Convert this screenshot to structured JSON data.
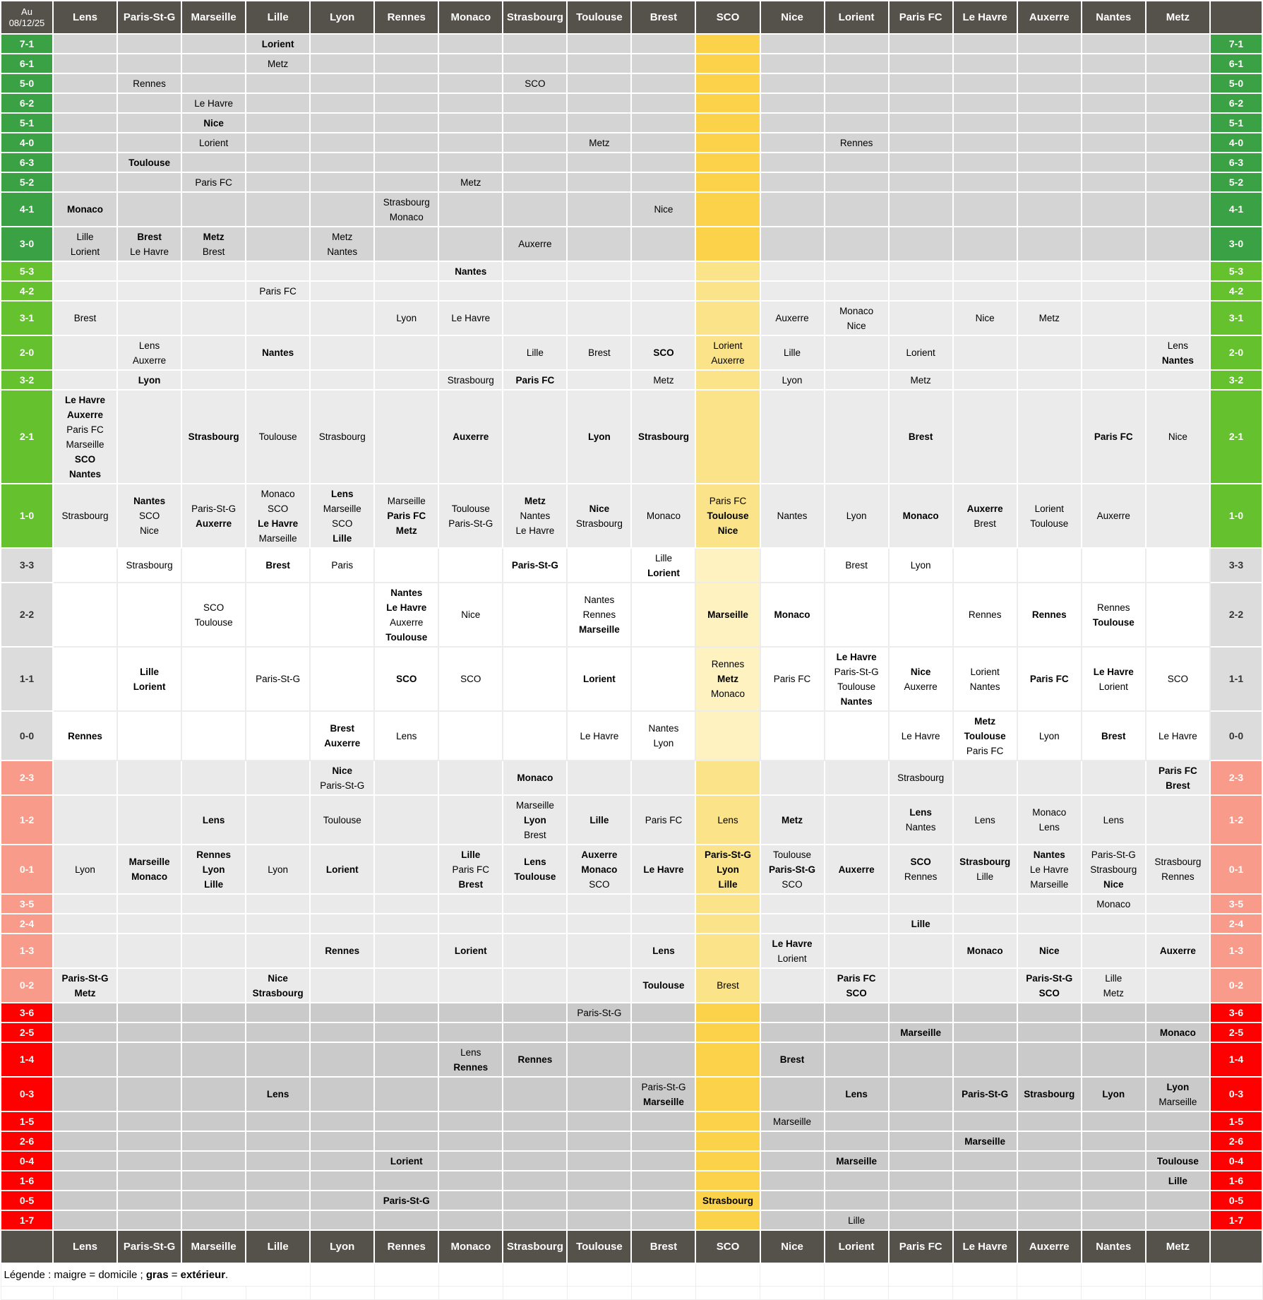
{
  "header": {
    "date_line1": "Au",
    "date_line2": "08/12/25"
  },
  "teams": [
    "Lens",
    "Paris-St-G",
    "Marseille",
    "Lille",
    "Lyon",
    "Rennes",
    "Monaco",
    "Strasbourg",
    "Toulouse",
    "Brest",
    "SCO",
    "Nice",
    "Lorient",
    "Paris FC",
    "Le Havre",
    "Auxerre",
    "Nantes",
    "Metz"
  ],
  "highlight_team": "SCO",
  "away_marker": "*",
  "legend": {
    "parts": [
      {
        "text": "Légende : maigre = domicile ; ",
        "bold": false
      },
      {
        "text": "gras",
        "bold": true
      },
      {
        "text": " = ",
        "bold": false
      },
      {
        "text": "extérieur",
        "bold": true
      },
      {
        "text": ".",
        "bold": false
      }
    ]
  },
  "colors": {
    "header_bg": "#54524A",
    "win_big_score": "#3BA145",
    "win_score": "#65C22E",
    "draw_score_bg": "#DCDCDC",
    "loss_score": "#F99B8B",
    "loss_big_score": "#FE0000",
    "row_bg_win_big": "#D4D4D4",
    "row_bg_win": "#EBEBEB",
    "row_bg_draw": "#FFFFFF",
    "row_bg_loss": "#EAEAEA",
    "row_bg_loss_big": "#CACACA",
    "sco_strong": "#FCD24B",
    "sco_medium": "#FBE38A",
    "sco_pale": "#FEF2C0"
  },
  "rows": [
    {
      "score": "7-1",
      "result": "win-big",
      "cells": {
        "Lille": [
          "*Lorient"
        ]
      }
    },
    {
      "score": "6-1",
      "result": "win-big",
      "cells": {
        "Lille": [
          "Metz"
        ]
      }
    },
    {
      "score": "5-0",
      "result": "win-big",
      "cells": {
        "Paris-St-G": [
          "Rennes"
        ],
        "Strasbourg": [
          "SCO"
        ]
      }
    },
    {
      "score": "6-2",
      "result": "win-big",
      "cells": {
        "Marseille": [
          "Le Havre"
        ]
      }
    },
    {
      "score": "5-1",
      "result": "win-big",
      "cells": {
        "Marseille": [
          "*Nice"
        ]
      }
    },
    {
      "score": "4-0",
      "result": "win-big",
      "cells": {
        "Marseille": [
          "Lorient"
        ],
        "Toulouse": [
          "Metz"
        ],
        "Lorient": [
          "Rennes"
        ]
      }
    },
    {
      "score": "6-3",
      "result": "win-big",
      "cells": {
        "Paris-St-G": [
          "*Toulouse"
        ]
      }
    },
    {
      "score": "5-2",
      "result": "win-big",
      "cells": {
        "Marseille": [
          "Paris FC"
        ],
        "Monaco": [
          "Metz"
        ]
      }
    },
    {
      "score": "4-1",
      "result": "win-big",
      "cells": {
        "Lens": [
          "*Monaco"
        ],
        "Rennes": [
          "Strasbourg",
          "Monaco"
        ],
        "Brest": [
          "Nice"
        ]
      }
    },
    {
      "score": "3-0",
      "result": "win-big",
      "cells": {
        "Lens": [
          "Lille",
          "Lorient"
        ],
        "Paris-St-G": [
          "*Brest",
          "Le Havre"
        ],
        "Marseille": [
          "*Metz",
          "Brest"
        ],
        "Lyon": [
          "Metz",
          "Nantes"
        ],
        "Strasbourg": [
          "Auxerre"
        ]
      }
    },
    {
      "score": "5-3",
      "result": "win",
      "cells": {
        "Monaco": [
          "*Nantes"
        ]
      }
    },
    {
      "score": "4-2",
      "result": "win",
      "cells": {
        "Lille": [
          "Paris FC"
        ]
      }
    },
    {
      "score": "3-1",
      "result": "win",
      "cells": {
        "Lens": [
          "Brest"
        ],
        "Rennes": [
          "Lyon"
        ],
        "Monaco": [
          "Le Havre"
        ],
        "Nice": [
          "Auxerre"
        ],
        "Lorient": [
          "Monaco",
          "Nice"
        ],
        "Le Havre": [
          "Nice"
        ],
        "Auxerre": [
          "Metz"
        ]
      }
    },
    {
      "score": "2-0",
      "result": "win",
      "cells": {
        "Paris-St-G": [
          "Lens",
          "Auxerre"
        ],
        "Lille": [
          "*Nantes"
        ],
        "Strasbourg": [
          "Lille"
        ],
        "Toulouse": [
          "Brest"
        ],
        "Brest": [
          "*SCO"
        ],
        "SCO": [
          "Lorient",
          "Auxerre"
        ],
        "Nice": [
          "Lille"
        ],
        "Paris FC": [
          "Lorient"
        ],
        "Metz": [
          "Lens",
          "*Nantes"
        ]
      }
    },
    {
      "score": "3-2",
      "result": "win",
      "cells": {
        "Paris-St-G": [
          "*Lyon"
        ],
        "Monaco": [
          "Strasbourg"
        ],
        "Strasbourg": [
          "*Paris FC"
        ],
        "Brest": [
          "Metz"
        ],
        "Nice": [
          "Lyon"
        ],
        "Paris FC": [
          "Metz"
        ]
      }
    },
    {
      "score": "2-1",
      "result": "win",
      "cells": {
        "Lens": [
          "*Le Havre",
          "*Auxerre",
          "Paris FC",
          "Marseille",
          "*SCO",
          "*Nantes"
        ],
        "Marseille": [
          "*Strasbourg"
        ],
        "Lille": [
          "Toulouse"
        ],
        "Lyon": [
          "Strasbourg"
        ],
        "Monaco": [
          "*Auxerre"
        ],
        "Toulouse": [
          "*Lyon"
        ],
        "Brest": [
          "*Strasbourg"
        ],
        "Paris FC": [
          "*Brest"
        ],
        "Nantes": [
          "*Paris FC"
        ],
        "Metz": [
          "Nice"
        ]
      }
    },
    {
      "score": "1-0",
      "result": "win",
      "cells": {
        "Lens": [
          "Strasbourg"
        ],
        "Paris-St-G": [
          "*Nantes",
          "SCO",
          "Nice"
        ],
        "Marseille": [
          "Paris-St-G",
          "*Auxerre"
        ],
        "Lille": [
          "Monaco",
          "SCO",
          "*Le Havre",
          "Marseille"
        ],
        "Lyon": [
          "*Lens",
          "Marseille",
          "SCO",
          "*Lille"
        ],
        "Rennes": [
          "Marseille",
          "*Paris FC",
          "*Metz"
        ],
        "Monaco": [
          "Toulouse",
          "Paris-St-G"
        ],
        "Strasbourg": [
          "*Metz",
          "Nantes",
          "Le Havre"
        ],
        "Toulouse": [
          "*Nice",
          "Strasbourg"
        ],
        "Brest": [
          "Monaco"
        ],
        "SCO": [
          "Paris FC",
          "*Toulouse",
          "*Nice"
        ],
        "Nice": [
          "Nantes"
        ],
        "Lorient": [
          "Lyon"
        ],
        "Paris FC": [
          "*Monaco"
        ],
        "Le Havre": [
          "*Auxerre",
          "Brest"
        ],
        "Auxerre": [
          "Lorient",
          "Toulouse"
        ],
        "Nantes": [
          "Auxerre"
        ]
      }
    },
    {
      "score": "3-3",
      "result": "draw",
      "cells": {
        "Paris-St-G": [
          "Strasbourg"
        ],
        "Lille": [
          "*Brest"
        ],
        "Lyon": [
          "Paris"
        ],
        "Strasbourg": [
          "*Paris-St-G"
        ],
        "Brest": [
          "Lille",
          "*Lorient"
        ],
        "Lorient": [
          "Brest"
        ],
        "Paris FC": [
          "Lyon"
        ]
      }
    },
    {
      "score": "2-2",
      "result": "draw",
      "cells": {
        "Marseille": [
          "SCO",
          "Toulouse"
        ],
        "Rennes": [
          "*Nantes",
          "*Le Havre",
          "Auxerre",
          "*Toulouse"
        ],
        "Monaco": [
          "Nice"
        ],
        "Toulouse": [
          "Nantes",
          "Rennes",
          "*Marseille"
        ],
        "SCO": [
          "*Marseille"
        ],
        "Nice": [
          "*Monaco"
        ],
        "Le Havre": [
          "Rennes"
        ],
        "Auxerre": [
          "*Rennes"
        ],
        "Nantes": [
          "Rennes",
          "*Toulouse"
        ]
      }
    },
    {
      "score": "1-1",
      "result": "draw",
      "cells": {
        "Paris-St-G": [
          "*Lille",
          "*Lorient"
        ],
        "Lille": [
          "Paris-St-G"
        ],
        "Rennes": [
          "*SCO"
        ],
        "Monaco": [
          "SCO"
        ],
        "Toulouse": [
          "*Lorient"
        ],
        "SCO": [
          "Rennes",
          "*Metz",
          "Monaco"
        ],
        "Nice": [
          "Paris FC"
        ],
        "Lorient": [
          "*Le Havre",
          "Paris-St-G",
          "Toulouse",
          "*Nantes"
        ],
        "Paris FC": [
          "*Nice",
          "Auxerre"
        ],
        "Le Havre": [
          "Lorient",
          "Nantes"
        ],
        "Auxerre": [
          "*Paris FC"
        ],
        "Nantes": [
          "*Le Havre",
          "Lorient"
        ],
        "Metz": [
          "SCO"
        ]
      }
    },
    {
      "score": "0-0",
      "result": "draw",
      "cells": {
        "Lens": [
          "*Rennes"
        ],
        "Lyon": [
          "*Brest",
          "*Auxerre"
        ],
        "Rennes": [
          "Lens"
        ],
        "Toulouse": [
          "Le Havre"
        ],
        "Brest": [
          "Nantes",
          "Lyon"
        ],
        "Paris FC": [
          "Le Havre"
        ],
        "Le Havre": [
          "*Metz",
          "*Toulouse",
          "Paris FC"
        ],
        "Auxerre": [
          "Lyon"
        ],
        "Nantes": [
          "*Brest"
        ],
        "Metz": [
          "Le Havre"
        ]
      }
    },
    {
      "score": "2-3",
      "result": "loss",
      "cells": {
        "Lyon": [
          "*Nice",
          "Paris-St-G"
        ],
        "Strasbourg": [
          "*Monaco"
        ],
        "Paris FC": [
          "Strasbourg"
        ],
        "Metz": [
          "*Paris FC",
          "*Brest"
        ]
      }
    },
    {
      "score": "1-2",
      "result": "loss",
      "cells": {
        "Marseille": [
          "*Lens"
        ],
        "Lyon": [
          "Toulouse"
        ],
        "Strasbourg": [
          "Marseille",
          "*Lyon",
          "Brest"
        ],
        "Toulouse": [
          "*Lille"
        ],
        "Brest": [
          "Paris FC"
        ],
        "SCO": [
          "Lens"
        ],
        "Nice": [
          "*Metz"
        ],
        "Paris FC": [
          "*Lens",
          "Nantes"
        ],
        "Le Havre": [
          "Lens"
        ],
        "Auxerre": [
          "Monaco",
          "Lens"
        ],
        "Nantes": [
          "Lens"
        ]
      }
    },
    {
      "score": "0-1",
      "result": "loss",
      "cells": {
        "Lens": [
          "Lyon"
        ],
        "Paris-St-G": [
          "*Marseille",
          "*Monaco"
        ],
        "Marseille": [
          "*Rennes",
          "*Lyon",
          "*Lille"
        ],
        "Lille": [
          "Lyon"
        ],
        "Lyon": [
          "*Lorient"
        ],
        "Monaco": [
          "*Lille",
          "Paris FC",
          "*Brest"
        ],
        "Strasbourg": [
          "*Lens",
          "*Toulouse"
        ],
        "Toulouse": [
          "*Auxerre",
          "*Monaco",
          "SCO"
        ],
        "Brest": [
          "*Le Havre"
        ],
        "SCO": [
          "*Paris-St-G",
          "*Lyon",
          "*Lille"
        ],
        "Nice": [
          "Toulouse",
          "*Paris-St-G",
          "SCO"
        ],
        "Lorient": [
          "*Auxerre"
        ],
        "Paris FC": [
          "*SCO",
          "Rennes"
        ],
        "Le Havre": [
          "*Strasbourg",
          "Lille"
        ],
        "Auxerre": [
          "*Nantes",
          "Le Havre",
          "Marseille"
        ],
        "Nantes": [
          "Paris-St-G",
          "Strasbourg",
          "*Nice"
        ],
        "Metz": [
          "Strasbourg",
          "Rennes"
        ]
      }
    },
    {
      "score": "3-5",
      "result": "loss",
      "cells": {
        "Nantes": [
          "Monaco"
        ]
      }
    },
    {
      "score": "2-4",
      "result": "loss",
      "cells": {
        "Paris FC": [
          "*Lille"
        ]
      }
    },
    {
      "score": "1-3",
      "result": "loss",
      "cells": {
        "Lyon": [
          "*Rennes"
        ],
        "Monaco": [
          "*Lorient"
        ],
        "Brest": [
          "*Lens"
        ],
        "Nice": [
          "*Le Havre",
          "Lorient"
        ],
        "Le Havre": [
          "*Monaco"
        ],
        "Auxerre": [
          "*Nice"
        ],
        "Metz": [
          "*Auxerre"
        ]
      }
    },
    {
      "score": "0-2",
      "result": "loss",
      "cells": {
        "Lens": [
          "*Paris-St-G",
          "*Metz"
        ],
        "Lille": [
          "*Nice",
          "*Strasbourg"
        ],
        "Brest": [
          "*Toulouse"
        ],
        "SCO": [
          "Brest"
        ],
        "Lorient": [
          "*Paris FC",
          "*SCO"
        ],
        "Auxerre": [
          "*Paris-St-G",
          "*SCO"
        ],
        "Nantes": [
          "Lille",
          "Metz"
        ]
      }
    },
    {
      "score": "3-6",
      "result": "loss-big",
      "cells": {
        "Toulouse": [
          "Paris-St-G"
        ]
      }
    },
    {
      "score": "2-5",
      "result": "loss-big",
      "cells": {
        "Paris FC": [
          "*Marseille"
        ],
        "Metz": [
          "*Monaco"
        ]
      }
    },
    {
      "score": "1-4",
      "result": "loss-big",
      "cells": {
        "Monaco": [
          "Lens",
          "*Rennes"
        ],
        "Strasbourg": [
          "*Rennes"
        ],
        "Nice": [
          "*Brest"
        ]
      }
    },
    {
      "score": "0-3",
      "result": "loss-big",
      "cells": {
        "Lille": [
          "*Lens"
        ],
        "Brest": [
          "Paris-St-G",
          "*Marseille"
        ],
        "Lorient": [
          "*Lens"
        ],
        "Le Havre": [
          "*Paris-St-G"
        ],
        "Auxerre": [
          "*Strasbourg"
        ],
        "Nantes": [
          "*Lyon"
        ],
        "Metz": [
          "*Lyon",
          "Marseille"
        ]
      }
    },
    {
      "score": "1-5",
      "result": "loss-big",
      "cells": {
        "Nice": [
          "Marseille"
        ]
      }
    },
    {
      "score": "2-6",
      "result": "loss-big",
      "cells": {
        "Le Havre": [
          "*Marseille"
        ]
      }
    },
    {
      "score": "0-4",
      "result": "loss-big",
      "cells": {
        "Rennes": [
          "*Lorient"
        ],
        "Lorient": [
          "*Marseille"
        ],
        "Metz": [
          "*Toulouse"
        ]
      }
    },
    {
      "score": "1-6",
      "result": "loss-big",
      "cells": {
        "Metz": [
          "*Lille"
        ]
      }
    },
    {
      "score": "0-5",
      "result": "loss-big",
      "cells": {
        "Rennes": [
          "*Paris-St-G"
        ],
        "SCO": [
          "*Strasbourg"
        ]
      }
    },
    {
      "score": "1-7",
      "result": "loss-big",
      "cells": {
        "Lorient": [
          "Lille"
        ]
      }
    }
  ]
}
